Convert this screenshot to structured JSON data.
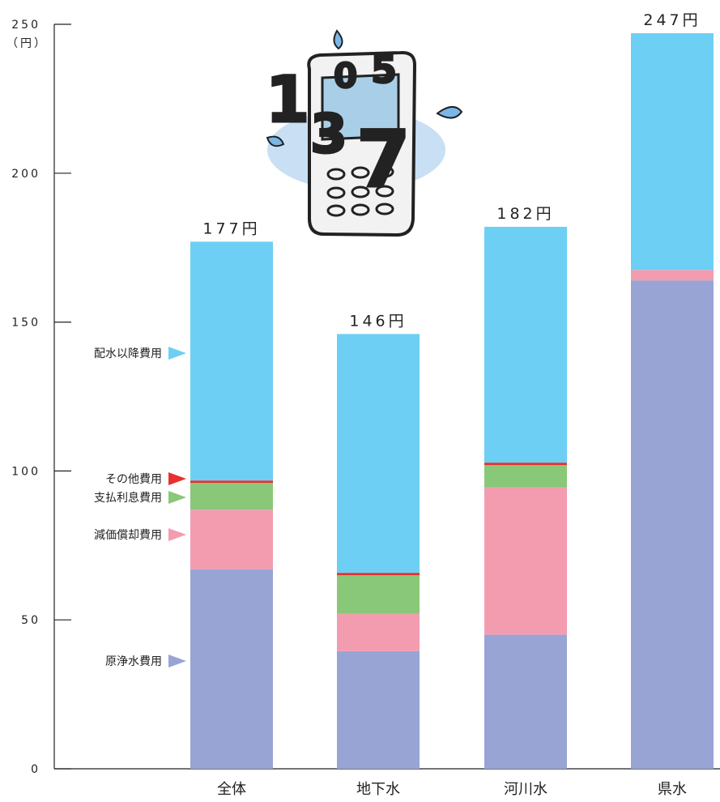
{
  "chart_data": {
    "type": "bar",
    "stacked": true,
    "unit_label": "（円）",
    "yticks": [
      "0",
      "50",
      "100",
      "150",
      "200",
      "250"
    ],
    "ylim": [
      0,
      250
    ],
    "categories": [
      "全体",
      "地下水",
      "河川水",
      "県水"
    ],
    "totals": [
      "177円",
      "146円",
      "182円",
      "247円"
    ],
    "total_values": [
      177,
      146,
      182,
      247
    ],
    "series": [
      {
        "name": "原浄水費用",
        "color": "#98a4d4",
        "values": [
          67,
          39.5,
          45,
          164
        ]
      },
      {
        "name": "減価償却費用",
        "color": "#f39cb0",
        "values": [
          20,
          12.5,
          49.5,
          3.5
        ]
      },
      {
        "name": "支払利息費用",
        "color": "#88c878",
        "values": [
          9,
          13,
          7.5,
          0
        ]
      },
      {
        "name": "その他費用",
        "color": "#e8302e",
        "values": [
          0.8,
          0.8,
          0.8,
          0
        ]
      },
      {
        "name": "配水以降費用",
        "color": "#6dcff4",
        "values": [
          80.2,
          80.2,
          79.2,
          79.5
        ]
      }
    ],
    "legend": {
      "placement": "left",
      "order": [
        "配水以降費用",
        "その他費用",
        "支払利息費用",
        "減価償却費用",
        "原浄水費用"
      ]
    }
  },
  "decoration": {
    "icon": "mobile-phone-with-numbers-icon",
    "digits": [
      "1",
      "0",
      "5",
      "3",
      "7"
    ]
  }
}
